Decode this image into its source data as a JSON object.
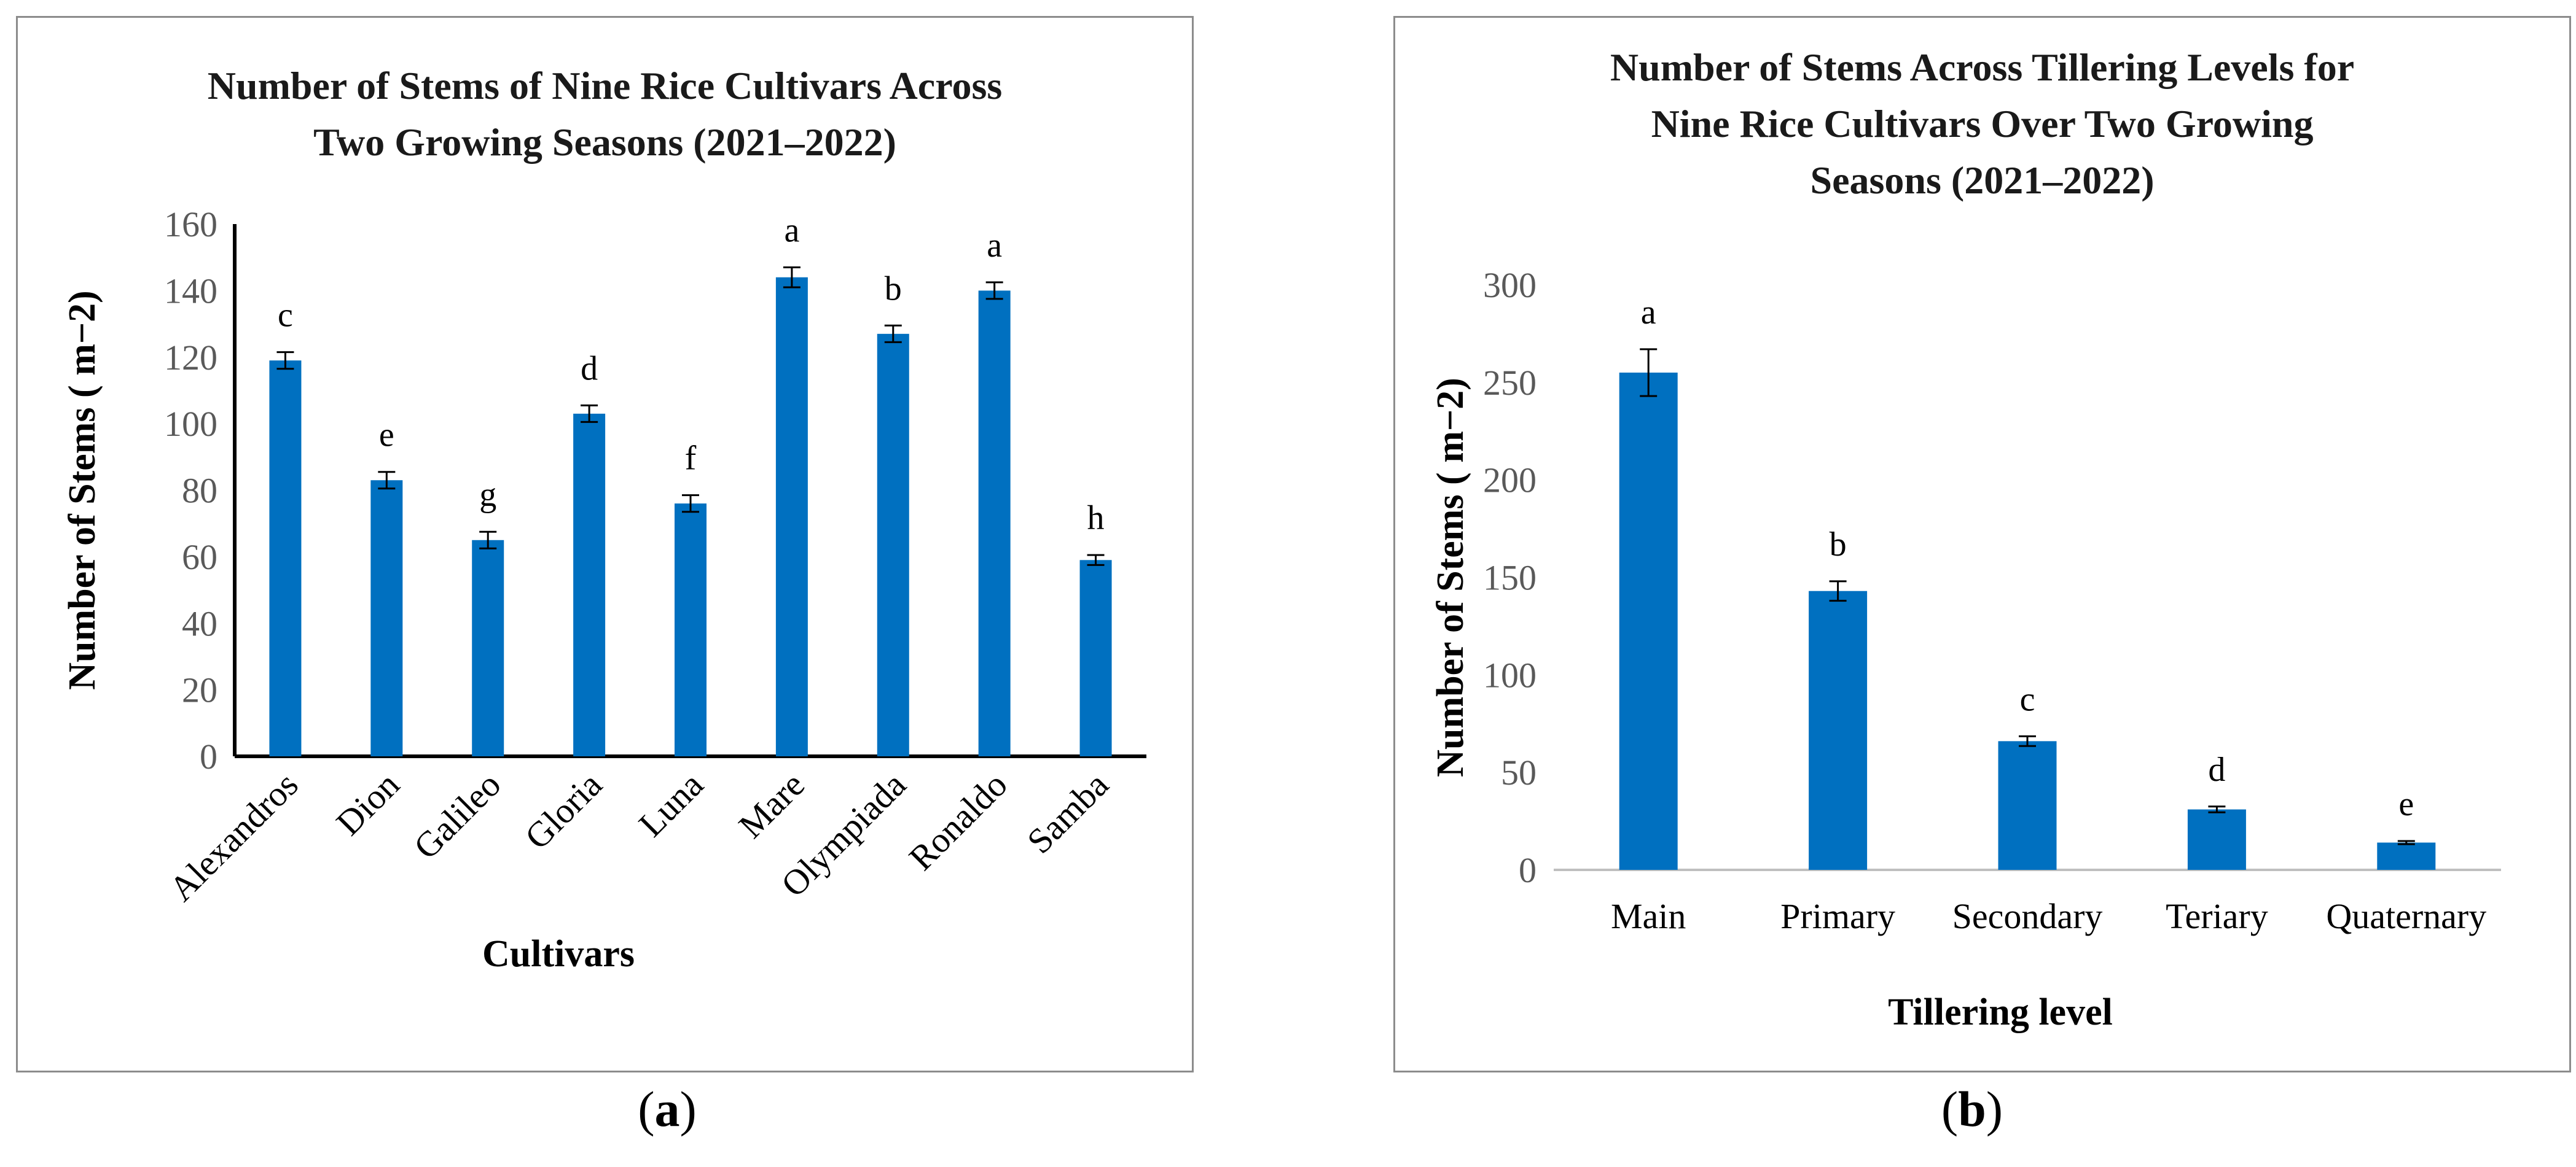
{
  "chart_data": [
    {
      "type": "bar",
      "panel_label": "a",
      "title": "Number of Stems of Nine Rice Cultivars Across\nTwo Growing Seasons (2021–2022)",
      "xlabel": "Cultivars",
      "ylabel": "Number of Stems ( m−2)",
      "ylim": [
        0,
        160
      ],
      "yticks": [
        0,
        20,
        40,
        60,
        80,
        100,
        120,
        140,
        160
      ],
      "categories": [
        "Alexandros",
        "Dion",
        "Galileo",
        "Gloria",
        "Luna",
        "Mare",
        "Olympiada",
        "Ronaldo",
        "Samba"
      ],
      "values": [
        119,
        83,
        65,
        103,
        76,
        144,
        127,
        140,
        59
      ],
      "errors": [
        2.5,
        2.5,
        2.5,
        2.5,
        2.5,
        3,
        2.5,
        2.5,
        1.5
      ],
      "letters": [
        "c",
        "e",
        "g",
        "d",
        "f",
        "a",
        "b",
        "a",
        "h"
      ],
      "grid": false,
      "color": "#0070C0"
    },
    {
      "type": "bar",
      "panel_label": "b",
      "title": "Number of Stems Across Tillering Levels for\nNine Rice Cultivars Over Two Growing\nSeasons (2021–2022)",
      "xlabel": "Tillering level",
      "ylabel": "Number of Stems ( m−2)",
      "ylim": [
        0,
        300
      ],
      "yticks": [
        0,
        50,
        100,
        150,
        200,
        250,
        300
      ],
      "categories": [
        "Main",
        "Primary",
        "Secondary",
        "Teriary",
        "Quaternary"
      ],
      "values": [
        255,
        143,
        66,
        31,
        14
      ],
      "errors": [
        12,
        5,
        2.5,
        1.5,
        0.8
      ],
      "letters": [
        "a",
        "b",
        "c",
        "d",
        "e"
      ],
      "grid": false,
      "color": "#0070C0"
    }
  ]
}
